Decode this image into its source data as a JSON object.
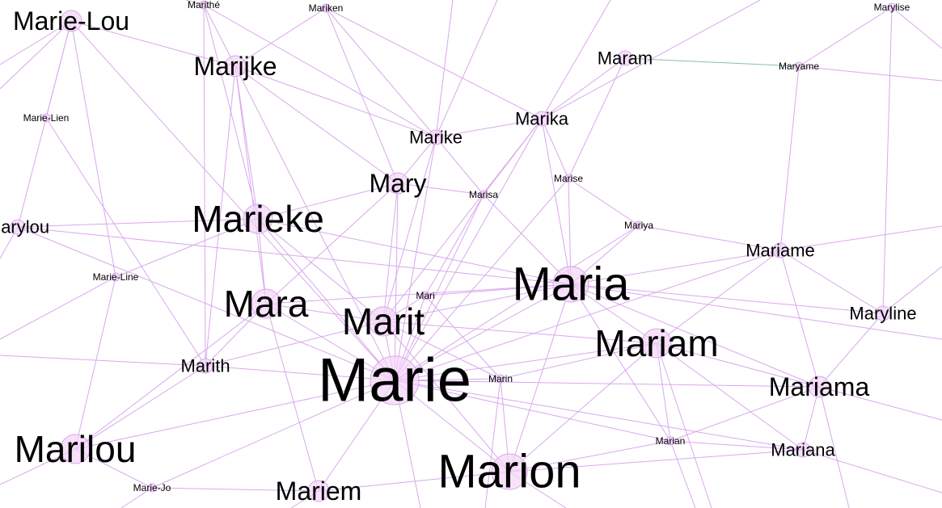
{
  "colors": {
    "edge": "#d9a8ec",
    "edge_alt": "#8fb8b8",
    "node_fill": "#f3d6f7",
    "node_stroke": "#d9a8ec",
    "label": "#000000"
  },
  "graph": {
    "nodes": [
      {
        "id": "marie-lou",
        "label": "Marie-Lou",
        "weight": 3
      },
      {
        "id": "marithe",
        "label": "Marithé",
        "weight": 1
      },
      {
        "id": "mariken",
        "label": "Mariken",
        "weight": 1
      },
      {
        "id": "marylise",
        "label": "Marylise",
        "weight": 1
      },
      {
        "id": "marijke",
        "label": "Marijke",
        "weight": 3
      },
      {
        "id": "maram",
        "label": "Maram",
        "weight": 2
      },
      {
        "id": "maryame",
        "label": "Maryame",
        "weight": 1
      },
      {
        "id": "marie-lien",
        "label": "Marie-Lien",
        "weight": 1
      },
      {
        "id": "marike",
        "label": "Marike",
        "weight": 2
      },
      {
        "id": "marika",
        "label": "Marika",
        "weight": 2
      },
      {
        "id": "mary",
        "label": "Mary",
        "weight": 3
      },
      {
        "id": "marise",
        "label": "Marise",
        "weight": 1
      },
      {
        "id": "marisa",
        "label": "Marisa",
        "weight": 1
      },
      {
        "id": "marieke",
        "label": "Marieke",
        "weight": 4
      },
      {
        "id": "marylou",
        "label": "Marylou",
        "weight": 2
      },
      {
        "id": "mariya",
        "label": "Mariya",
        "weight": 1
      },
      {
        "id": "mariame",
        "label": "Mariame",
        "weight": 2
      },
      {
        "id": "marie-line",
        "label": "Marie-Line",
        "weight": 1
      },
      {
        "id": "maria",
        "label": "Maria",
        "weight": 5
      },
      {
        "id": "mara",
        "label": "Mara",
        "weight": 4
      },
      {
        "id": "mari",
        "label": "Mari",
        "weight": 1
      },
      {
        "id": "maryline",
        "label": "Maryline",
        "weight": 2
      },
      {
        "id": "marit",
        "label": "Marit",
        "weight": 4
      },
      {
        "id": "mariam",
        "label": "Mariam",
        "weight": 4
      },
      {
        "id": "marith",
        "label": "Marith",
        "weight": 2
      },
      {
        "id": "marie",
        "label": "Marie",
        "weight": 7
      },
      {
        "id": "marin",
        "label": "Marin",
        "weight": 1
      },
      {
        "id": "mariama",
        "label": "Mariama",
        "weight": 3
      },
      {
        "id": "marilou",
        "label": "Marilou",
        "weight": 4
      },
      {
        "id": "marian",
        "label": "Marian",
        "weight": 1
      },
      {
        "id": "mariana",
        "label": "Mariana",
        "weight": 2
      },
      {
        "id": "marion",
        "label": "Marion",
        "weight": 5
      },
      {
        "id": "marie-jo",
        "label": "Marie-Jo",
        "weight": 1
      },
      {
        "id": "mariem",
        "label": "Mariem",
        "weight": 3
      }
    ],
    "edges": [
      [
        "marie",
        "maria"
      ],
      [
        "marie",
        "marit"
      ],
      [
        "marie",
        "mara"
      ],
      [
        "marie",
        "marion"
      ],
      [
        "marie",
        "mariam"
      ],
      [
        "marie",
        "marieke"
      ],
      [
        "marie",
        "mary"
      ],
      [
        "marie",
        "marilou"
      ],
      [
        "marie",
        "mariem"
      ],
      [
        "marie",
        "marith"
      ],
      [
        "marie",
        "marin"
      ],
      [
        "marie",
        "mari"
      ],
      [
        "marie",
        "marika"
      ],
      [
        "marie",
        "marike"
      ],
      [
        "marie",
        "marisa"
      ],
      [
        "marie",
        "mariama"
      ],
      [
        "marie",
        "mariana"
      ],
      [
        "marie",
        "marian"
      ],
      [
        "marie",
        "marijke"
      ],
      [
        "marie",
        "marie-lou"
      ],
      [
        "marie",
        "marie-jo"
      ],
      [
        "marie",
        "mariame"
      ],
      [
        "marie",
        "mariya"
      ],
      [
        "marie",
        "marise"
      ],
      [
        "marie",
        "marylou"
      ],
      [
        "maria",
        "mariam"
      ],
      [
        "maria",
        "marit"
      ],
      [
        "maria",
        "mari"
      ],
      [
        "maria",
        "marion"
      ],
      [
        "maria",
        "mariama"
      ],
      [
        "maria",
        "marika"
      ],
      [
        "maria",
        "mariya"
      ],
      [
        "maria",
        "marisa"
      ],
      [
        "maria",
        "mariame"
      ],
      [
        "maria",
        "mara"
      ],
      [
        "maria",
        "marieke"
      ],
      [
        "maria",
        "marylou"
      ],
      [
        "maria",
        "marian"
      ],
      [
        "maria",
        "maryline"
      ],
      [
        "maria",
        "marise"
      ],
      [
        "marit",
        "mara"
      ],
      [
        "marit",
        "mari"
      ],
      [
        "marit",
        "marith"
      ],
      [
        "marit",
        "marion"
      ],
      [
        "marit",
        "mariam"
      ],
      [
        "marit",
        "marike"
      ],
      [
        "marit",
        "marika"
      ],
      [
        "marit",
        "mary"
      ],
      [
        "marit",
        "marin"
      ],
      [
        "marit",
        "marieke"
      ],
      [
        "mara",
        "marieke"
      ],
      [
        "mara",
        "mariem"
      ],
      [
        "mara",
        "marijke"
      ],
      [
        "mara",
        "marith"
      ],
      [
        "mara",
        "mary"
      ],
      [
        "marion",
        "mariam"
      ],
      [
        "marion",
        "marin"
      ],
      [
        "marion",
        "marian"
      ],
      [
        "marion",
        "mariem"
      ],
      [
        "marion",
        "mariana"
      ],
      [
        "mariam",
        "mariama"
      ],
      [
        "mariam",
        "mariana"
      ],
      [
        "mariam",
        "marian"
      ],
      [
        "mariam",
        "mariame"
      ],
      [
        "mariam",
        "marin"
      ],
      [
        "mariama",
        "mariana"
      ],
      [
        "mariama",
        "mariame"
      ],
      [
        "mariama",
        "maryline"
      ],
      [
        "mariama",
        "marian"
      ],
      [
        "mariame",
        "maryame"
      ],
      [
        "mariame",
        "maryline"
      ],
      [
        "mariame",
        "mariya"
      ],
      [
        "marika",
        "marike"
      ],
      [
        "marika",
        "marise"
      ],
      [
        "marika",
        "maram"
      ],
      [
        "marika",
        "marisa"
      ],
      [
        "marika",
        "mariken"
      ],
      [
        "marike",
        "marisa"
      ],
      [
        "marike",
        "mary"
      ],
      [
        "marike",
        "mariken"
      ],
      [
        "marike",
        "marijke"
      ],
      [
        "marike",
        "marithe"
      ],
      [
        "mary",
        "marieke"
      ],
      [
        "mary",
        "marisa"
      ],
      [
        "mary",
        "marijke"
      ],
      [
        "mary",
        "mariken"
      ],
      [
        "marieke",
        "marijke"
      ],
      [
        "marieke",
        "marylou"
      ],
      [
        "marieke",
        "marie-line"
      ],
      [
        "marieke",
        "marithe"
      ],
      [
        "marijke",
        "marithe"
      ],
      [
        "marijke",
        "mariken"
      ],
      [
        "marijke",
        "marith"
      ],
      [
        "marie-lou",
        "marie-lien"
      ],
      [
        "marie-lou",
        "marijke"
      ],
      [
        "marie-lou",
        "marie-line"
      ],
      [
        "marie-lou",
        "marylou"
      ],
      [
        "marilou",
        "marie-line"
      ],
      [
        "marilou",
        "marith"
      ],
      [
        "marilou",
        "mara"
      ],
      [
        "marilou",
        "marie-jo"
      ],
      [
        "marith",
        "marithe"
      ],
      [
        "marith",
        "marie-lien"
      ],
      [
        "maram",
        "maryame"
      ],
      [
        "maram",
        "marise"
      ],
      [
        "maryame",
        "marylise"
      ],
      [
        "marylise",
        "maryline"
      ],
      [
        "marian",
        "mariana"
      ],
      [
        "mariya",
        "marise"
      ],
      [
        "mari",
        "marin"
      ],
      [
        "mari",
        "marisa"
      ],
      [
        "marie-jo",
        "mariem"
      ]
    ]
  }
}
